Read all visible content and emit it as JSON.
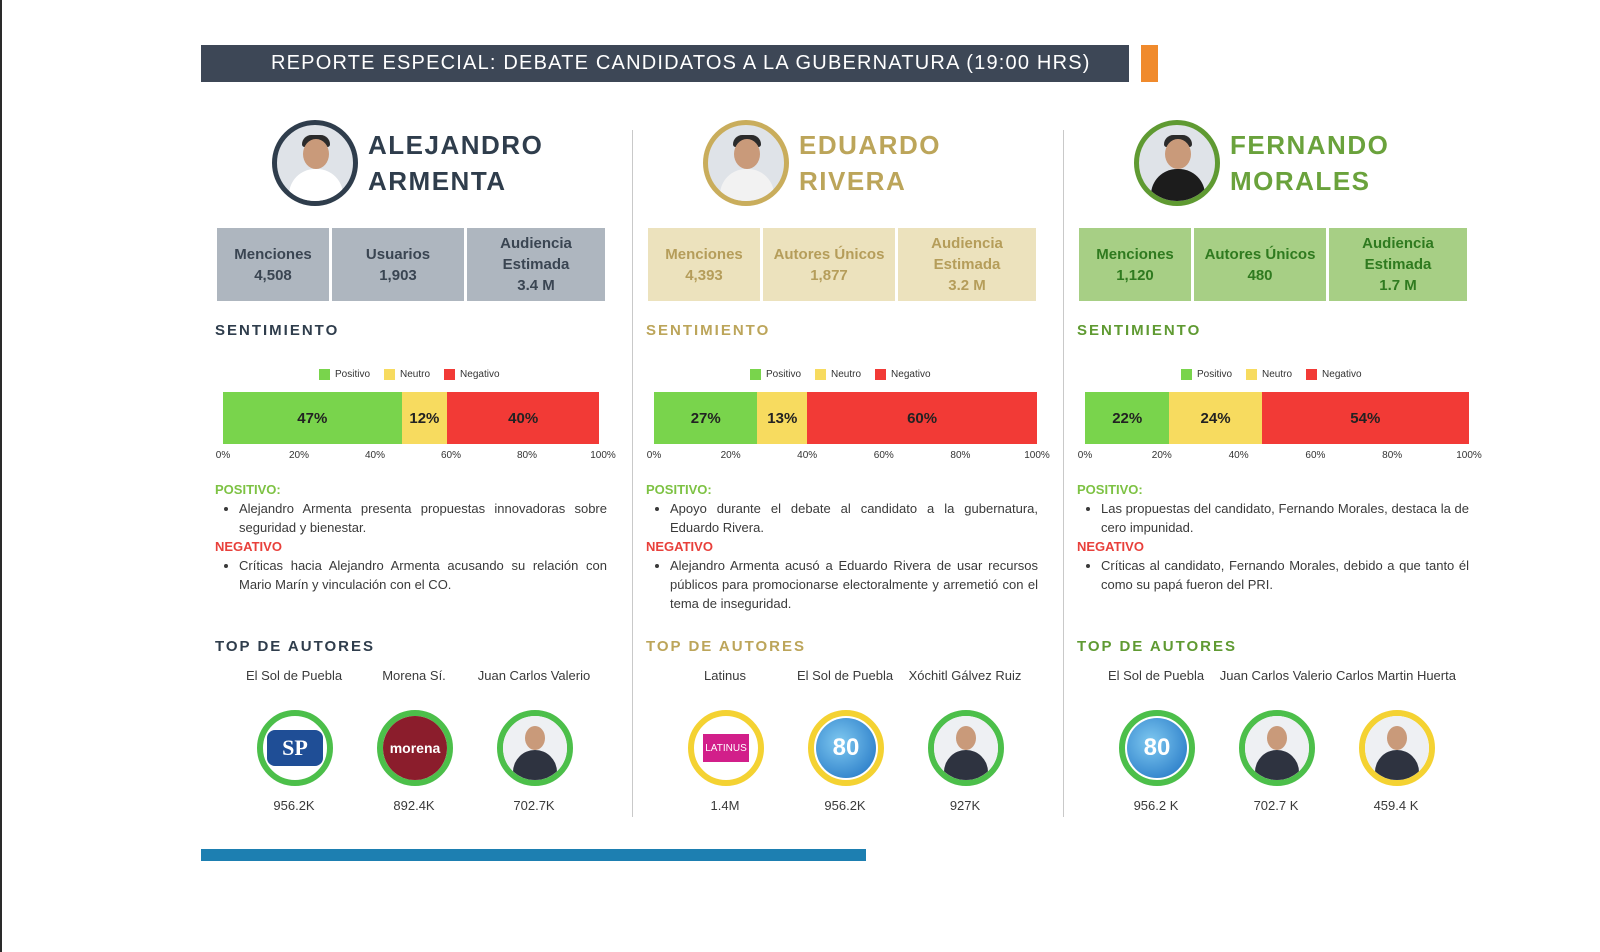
{
  "banner": {
    "title": "REPORTE ESPECIAL: DEBATE CANDIDATOS A LA GUBERNATURA (19:00 HRS)"
  },
  "colors": {
    "banner": "#3d4756",
    "accent": "#f08a2c",
    "bottom_bar": "#1d7fb1",
    "positive": "#79d44c",
    "neutral": "#f7db5f",
    "negative": "#f23a36"
  },
  "legend": {
    "positive": "Positivo",
    "neutral": "Neutro",
    "negative": "Negativo"
  },
  "ticks": [
    "0%",
    "20%",
    "40%",
    "60%",
    "80%",
    "100%"
  ],
  "candidates": [
    {
      "name_line1": "ALEJANDRO",
      "name_line2": "ARMENTA",
      "theme": {
        "name": "#2f3d4c",
        "ring": "#2f3d4c",
        "stat_bg": "#aeb6bf",
        "stat_text": "#3a4552",
        "title": "#2f3d4c"
      },
      "stats": [
        {
          "label": "Menciones",
          "value": "4,508"
        },
        {
          "label": "Usuarios",
          "value": "1,903"
        },
        {
          "label_line1": "Audiencia",
          "label_line2": "Estimada",
          "value": "3.4 M"
        }
      ],
      "sentiment_title": "SENTIMIENTO",
      "sentiment": {
        "positive": 47,
        "neutral": 12,
        "negative": 40
      },
      "sentiment_labels": {
        "positive": "47%",
        "neutral": "12%",
        "negative": "40%"
      },
      "positive_label": "POSITIVO:",
      "positive_text": "Alejandro Armenta presenta propuestas innovadoras sobre seguridad y bienestar.",
      "negative_label": "NEGATIVO",
      "negative_text": "Críticas hacia Alejandro Armenta acusando su relación con Mario Marín y vinculación con el CO.",
      "top_title": "TOP DE AUTORES",
      "authors": [
        {
          "name": "El Sol de Puebla",
          "count": "956.2K",
          "ring": "#4cbf4a",
          "icon": "sol-de-puebla-logo"
        },
        {
          "name": "Morena Sí.",
          "count": "892.4K",
          "ring": "#4cbf4a",
          "icon": "morena-logo"
        },
        {
          "name": "Juan Carlos Valerio",
          "count": "702.7K",
          "ring": "#4cbf4a",
          "icon": "person-avatar"
        }
      ]
    },
    {
      "name_line1": "EDUARDO",
      "name_line2": "RIVERA",
      "theme": {
        "name": "#bca55a",
        "ring": "#c9ad5c",
        "stat_bg": "#ece2bd",
        "stat_text": "#b59d5a",
        "title": "#bca55a"
      },
      "stats": [
        {
          "label": "Menciones",
          "value": "4,393"
        },
        {
          "label": "Autores Únicos",
          "value": "1,877"
        },
        {
          "label_line1": "Audiencia",
          "label_line2": "Estimada",
          "value": "3.2 M"
        }
      ],
      "sentiment_title": "SENTIMIENTO",
      "sentiment": {
        "positive": 27,
        "neutral": 13,
        "negative": 60
      },
      "sentiment_labels": {
        "positive": "27%",
        "neutral": "13%",
        "negative": "60%"
      },
      "positive_label": "POSITIVO:",
      "positive_text": "Apoyo durante el debate al candidato a la gubernatura, Eduardo Rivera.",
      "negative_label": "NEGATIVO",
      "negative_text": "Alejandro Armenta acusó a Eduardo Rivera de usar recursos públicos para promocionarse electoralmente y arremetió con el tema de inseguridad.",
      "top_title": "TOP DE AUTORES",
      "authors": [
        {
          "name": "Latinus",
          "count": "1.4M",
          "ring": "#f4d232",
          "icon": "latinus-logo"
        },
        {
          "name": "El Sol de Puebla",
          "count": "956.2K",
          "ring": "#f4d232",
          "icon": "sol-de-puebla-80-logo"
        },
        {
          "name": "Xóchitl Gálvez Ruiz",
          "count": "927K",
          "ring": "#4cbf4a",
          "icon": "person-avatar"
        }
      ]
    },
    {
      "name_line1": "FERNANDO",
      "name_line2": "MORALES",
      "theme": {
        "name": "#6aa23c",
        "ring": "#5f9a32",
        "stat_bg": "#a7cf85",
        "stat_text": "#2f7a1f",
        "title": "#5f9a32"
      },
      "stats": [
        {
          "label": "Menciones",
          "value": "1,120"
        },
        {
          "label": "Autores Únicos",
          "value": "480"
        },
        {
          "label_line1": "Audiencia",
          "label_line2": "Estimada",
          "value": "1.7 M"
        }
      ],
      "sentiment_title": "SENTIMIENTO",
      "sentiment": {
        "positive": 22,
        "neutral": 24,
        "negative": 54
      },
      "sentiment_labels": {
        "positive": "22%",
        "neutral": "24%",
        "negative": "54%"
      },
      "positive_label": "POSITIVO:",
      "positive_text": "Las propuestas del candidato, Fernando Morales, destaca la de cero impunidad.",
      "negative_label": "NEGATIVO",
      "negative_text": "Críticas al candidato, Fernando Morales, debido a que tanto él como su papá fueron del PRI.",
      "top_title": "TOP DE AUTORES",
      "authors": [
        {
          "name": "El Sol de Puebla",
          "count": "956.2 K",
          "ring": "#4cbf4a",
          "icon": "sol-de-puebla-80-logo"
        },
        {
          "name": "Juan Carlos Valerio",
          "count": "702.7 K",
          "ring": "#4cbf4a",
          "icon": "person-avatar"
        },
        {
          "name": "Carlos Martin Huerta",
          "count": "459.4 K",
          "ring": "#f4d232",
          "icon": "person-avatar"
        }
      ]
    }
  ]
}
